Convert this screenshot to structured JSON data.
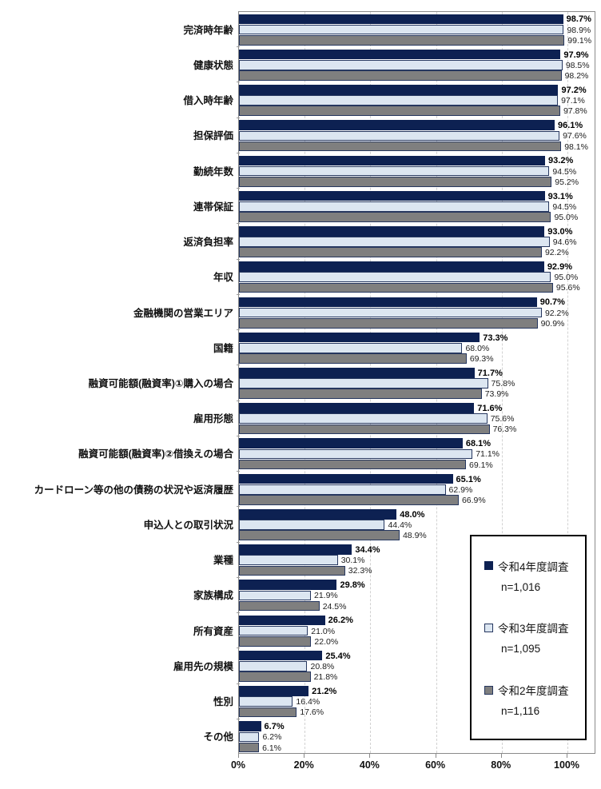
{
  "chart_data": {
    "type": "bar",
    "orientation": "horizontal",
    "title": "",
    "categories": [
      "完済時年齢",
      "健康状態",
      "借入時年齢",
      "担保評価",
      "勤続年数",
      "連帯保証",
      "返済負担率",
      "年収",
      "金融機関の営業エリア",
      "国籍",
      "融資可能額(融資率)①購入の場合",
      "雇用形態",
      "融資可能額(融資率)②借換えの場合",
      "カードローン等の他の債務の状況や返済履歴",
      "申込人との取引状況",
      "業種",
      "家族構成",
      "所有資産",
      "雇用先の規模",
      "性別",
      "その他"
    ],
    "series": [
      {
        "name": "令和4年度調査",
        "n_label": "n=1,016",
        "fill": "#0d2152",
        "border": "#0d2152",
        "bold_labels": true,
        "values": [
          98.7,
          97.9,
          97.2,
          96.1,
          93.2,
          93.1,
          93.0,
          92.9,
          90.7,
          73.3,
          71.7,
          71.6,
          68.1,
          65.1,
          48.0,
          34.4,
          29.8,
          26.2,
          25.4,
          21.2,
          6.7
        ]
      },
      {
        "name": "令和3年度調査",
        "n_label": "n=1,095",
        "fill": "#dce6f1",
        "border": "#26375f",
        "bold_labels": false,
        "values": [
          98.9,
          98.5,
          97.1,
          97.6,
          94.5,
          94.5,
          94.6,
          95.0,
          92.2,
          68.0,
          75.8,
          75.6,
          71.1,
          62.9,
          44.4,
          30.1,
          21.9,
          21.0,
          20.8,
          16.4,
          6.2
        ]
      },
      {
        "name": "令和2年度調査",
        "n_label": "n=1,116",
        "fill": "#7f7f7f",
        "border": "#26375f",
        "bold_labels": false,
        "values": [
          99.1,
          98.2,
          97.8,
          98.1,
          95.2,
          95.0,
          92.2,
          95.6,
          90.9,
          69.3,
          73.9,
          76.3,
          69.1,
          66.9,
          48.9,
          32.3,
          24.5,
          22.0,
          21.8,
          17.6,
          6.1
        ]
      }
    ],
    "value_suffix": "%",
    "x_axis": {
      "ticks": [
        "0%",
        "20%",
        "40%",
        "60%",
        "80%",
        "100%"
      ],
      "min": 0,
      "max": 100,
      "grid": true
    },
    "legend_position": "inside-bottom-right",
    "ylim": [
      0,
      110
    ]
  },
  "style_colors": {
    "plot_border": "#8a8a8a",
    "grid": "#d2d2d2",
    "text": "#111111",
    "legend_border": "#000000",
    "background": "#ffffff"
  }
}
